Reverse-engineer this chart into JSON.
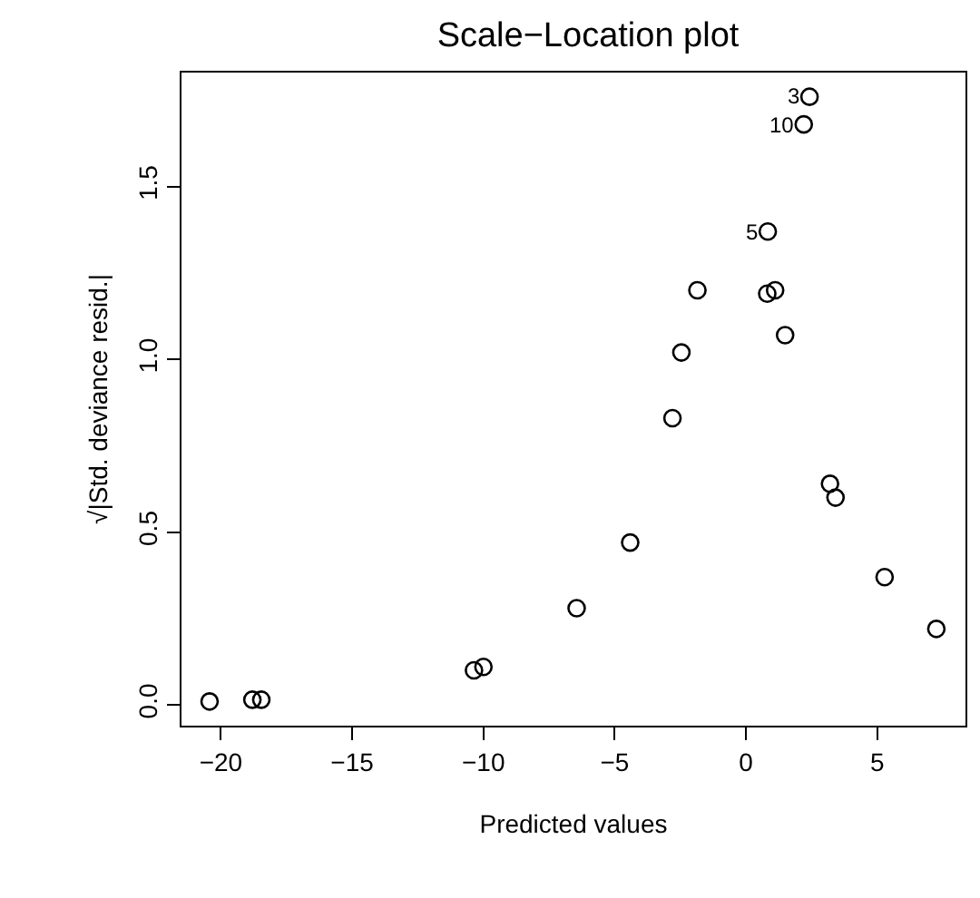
{
  "chart_data": {
    "type": "scatter",
    "title": "Scale−Location plot",
    "xlabel": "Predicted values",
    "ylabel": "√|Std. deviance resid.|",
    "x": [
      -20.43,
      -18.8,
      -18.46,
      -10.36,
      -10.0,
      -6.45,
      -4.41,
      -2.8,
      -2.46,
      -1.85,
      0.83,
      0.81,
      1.11,
      1.49,
      2.2,
      2.42,
      3.2,
      3.41,
      5.28,
      7.25
    ],
    "series": [
      {
        "color": "#000000",
        "values": [
          0.01,
          0.015,
          0.015,
          0.1,
          0.11,
          0.28,
          0.47,
          0.83,
          1.02,
          1.2,
          1.37,
          1.19,
          1.2,
          1.07,
          1.68,
          1.76,
          0.64,
          0.6,
          0.37,
          0.22
        ]
      }
    ],
    "marker": "circle",
    "xlim": [
      -21.5,
      8.36
    ],
    "ylim": [
      -0.06,
      1.83
    ],
    "xticks": [
      {
        "value": -20,
        "label": "−20"
      },
      {
        "value": -15,
        "label": "−15"
      },
      {
        "value": -10,
        "label": "−10"
      },
      {
        "value": -5,
        "label": "−5"
      },
      {
        "value": 0,
        "label": "0"
      },
      {
        "value": 5,
        "label": "5"
      }
    ],
    "yticks": [
      {
        "value": 0,
        "label": "0.0"
      },
      {
        "value": 0.5,
        "label": "0.5"
      },
      {
        "value": 1,
        "label": "1.0"
      },
      {
        "value": 1.5,
        "label": "1.5"
      }
    ],
    "annotations": [
      {
        "text": "3",
        "x": 2.42,
        "y": 1.76
      },
      {
        "text": "10",
        "x": 2.2,
        "y": 1.68
      },
      {
        "text": "5",
        "x": 0.83,
        "y": 1.37
      }
    ]
  }
}
